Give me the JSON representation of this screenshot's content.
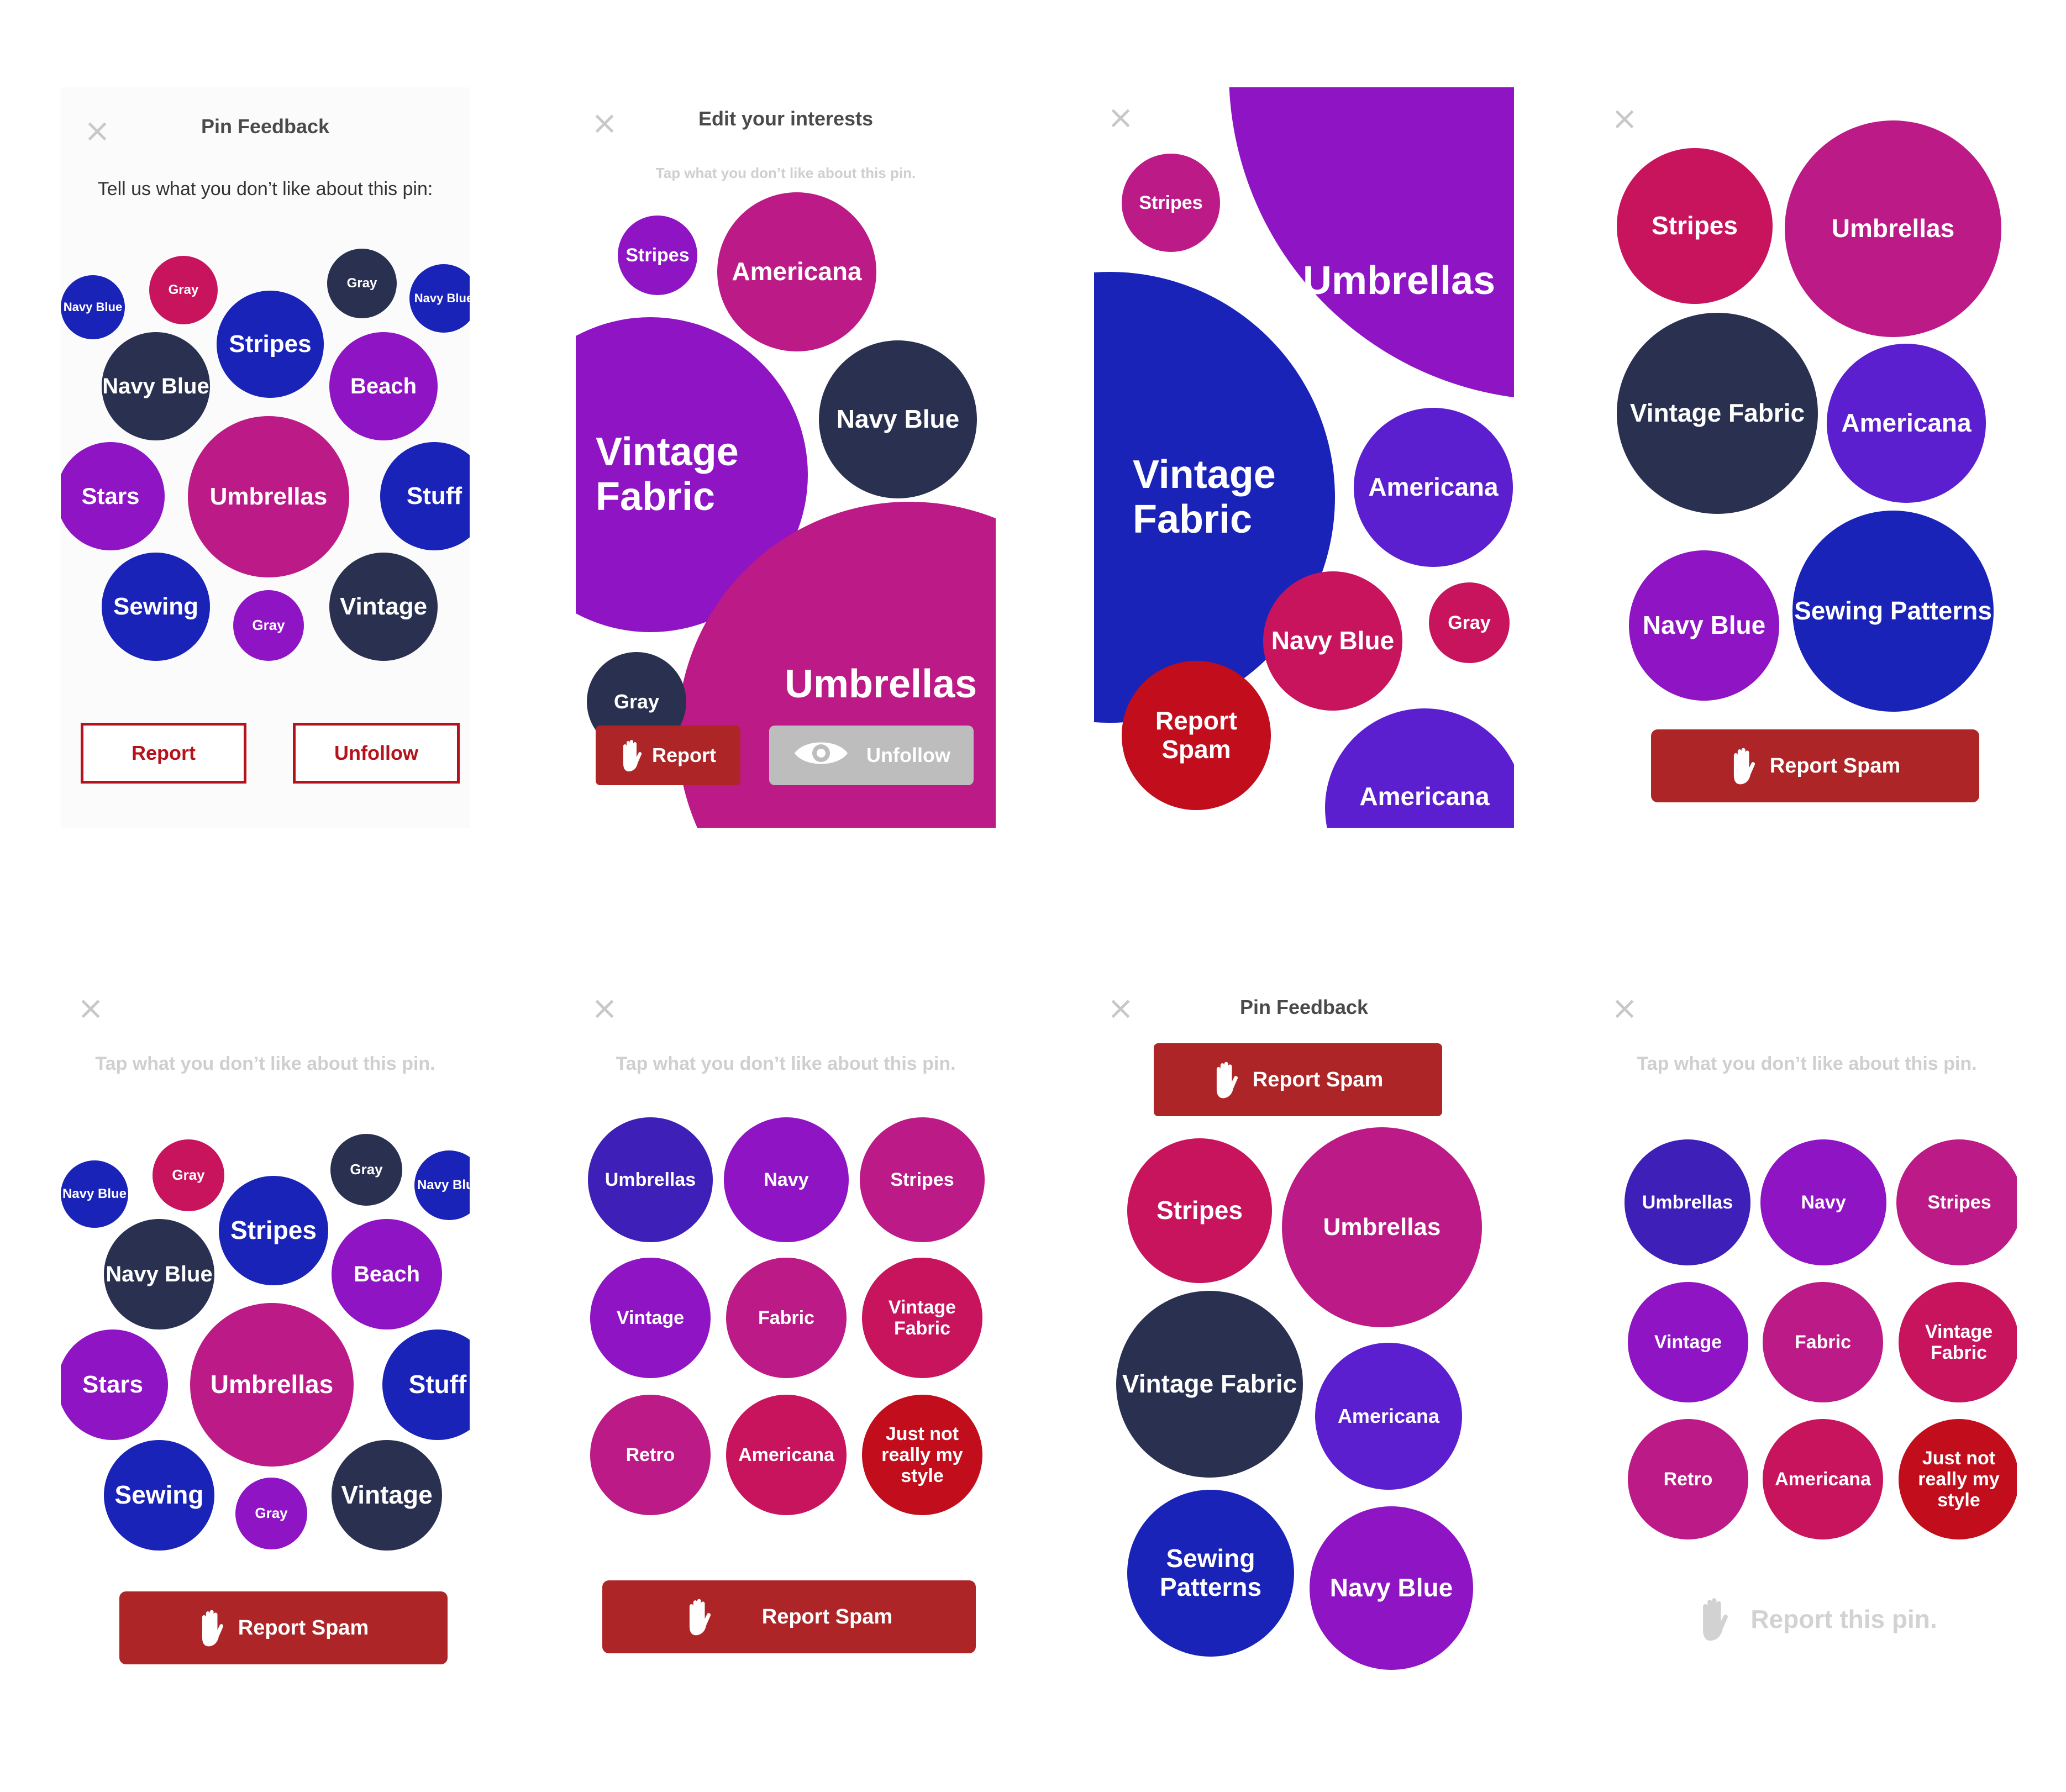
{
  "colors": {
    "navy": "#2a3150",
    "blue": "#1a23b8",
    "indigo": "#5b1fcf",
    "purple": "#8e14c4",
    "magenta": "#bc1a86",
    "crimson": "#c8145c",
    "red": "#c10d1c",
    "button_red": "#ad2527"
  },
  "panel1": {
    "title": "Pin Feedback",
    "prompt": "Tell us what you don’t like about this pin:",
    "bubbles": [
      "Navy Blue",
      "Gray",
      "Gray",
      "Navy Blue",
      "Stripes",
      "Navy Blue",
      "Beach",
      "Stars",
      "Umbrellas",
      "Stuff",
      "Sewing",
      "Gray",
      "Vintage"
    ],
    "report_label": "Report",
    "unfollow_label": "Unfollow"
  },
  "panel2": {
    "title": "Edit your interests",
    "subtitle": "Tap what you don’t like about this pin.",
    "bubbles": [
      "Stripes",
      "Americana",
      "Vintage Fabric",
      "Navy Blue",
      "Gray",
      "Umbrellas"
    ],
    "report_label": "Report",
    "unfollow_label": "Unfollow"
  },
  "panel3": {
    "bubbles": [
      "Stripes",
      "Umbrellas",
      "Vintage Fabric",
      "Americana",
      "Navy Blue",
      "Gray",
      "Report Spam",
      "Americana"
    ]
  },
  "panel4": {
    "bubbles": [
      "Stripes",
      "Umbrellas",
      "Vintage Fabric",
      "Americana",
      "Navy Blue",
      "Sewing Patterns"
    ],
    "report_label": "Report Spam"
  },
  "panel5": {
    "subtitle": "Tap what you don’t like about this pin.",
    "bubbles": [
      "Navy Blue",
      "Gray",
      "Gray",
      "Navy Blue",
      "Stripes",
      "Navy Blue",
      "Beach",
      "Stars",
      "Umbrellas",
      "Stuff",
      "Sewing",
      "Gray",
      "Vintage"
    ],
    "report_label": "Report Spam"
  },
  "panel6": {
    "subtitle": "Tap what you don’t like about this pin.",
    "bubbles": [
      "Umbrellas",
      "Navy",
      "Stripes",
      "Vintage",
      "Fabric",
      "Vintage Fabric",
      "Retro",
      "Americana",
      "Just not really my style"
    ],
    "report_label": "Report Spam"
  },
  "panel7": {
    "title": "Pin Feedback",
    "report_label": "Report Spam",
    "bubbles": [
      "Stripes",
      "Umbrellas",
      "Vintage Fabric",
      "Americana",
      "Sewing Patterns",
      "Navy Blue"
    ]
  },
  "panel8": {
    "subtitle": "Tap what you don’t like about this pin.",
    "bubbles": [
      "Umbrellas",
      "Navy",
      "Stripes",
      "Vintage",
      "Fabric",
      "Vintage Fabric",
      "Retro",
      "Americana",
      "Just not really my style"
    ],
    "report_label": "Report this pin."
  },
  "icons": {
    "close": "close-icon",
    "hand": "hand-icon",
    "eye": "eye-icon"
  }
}
